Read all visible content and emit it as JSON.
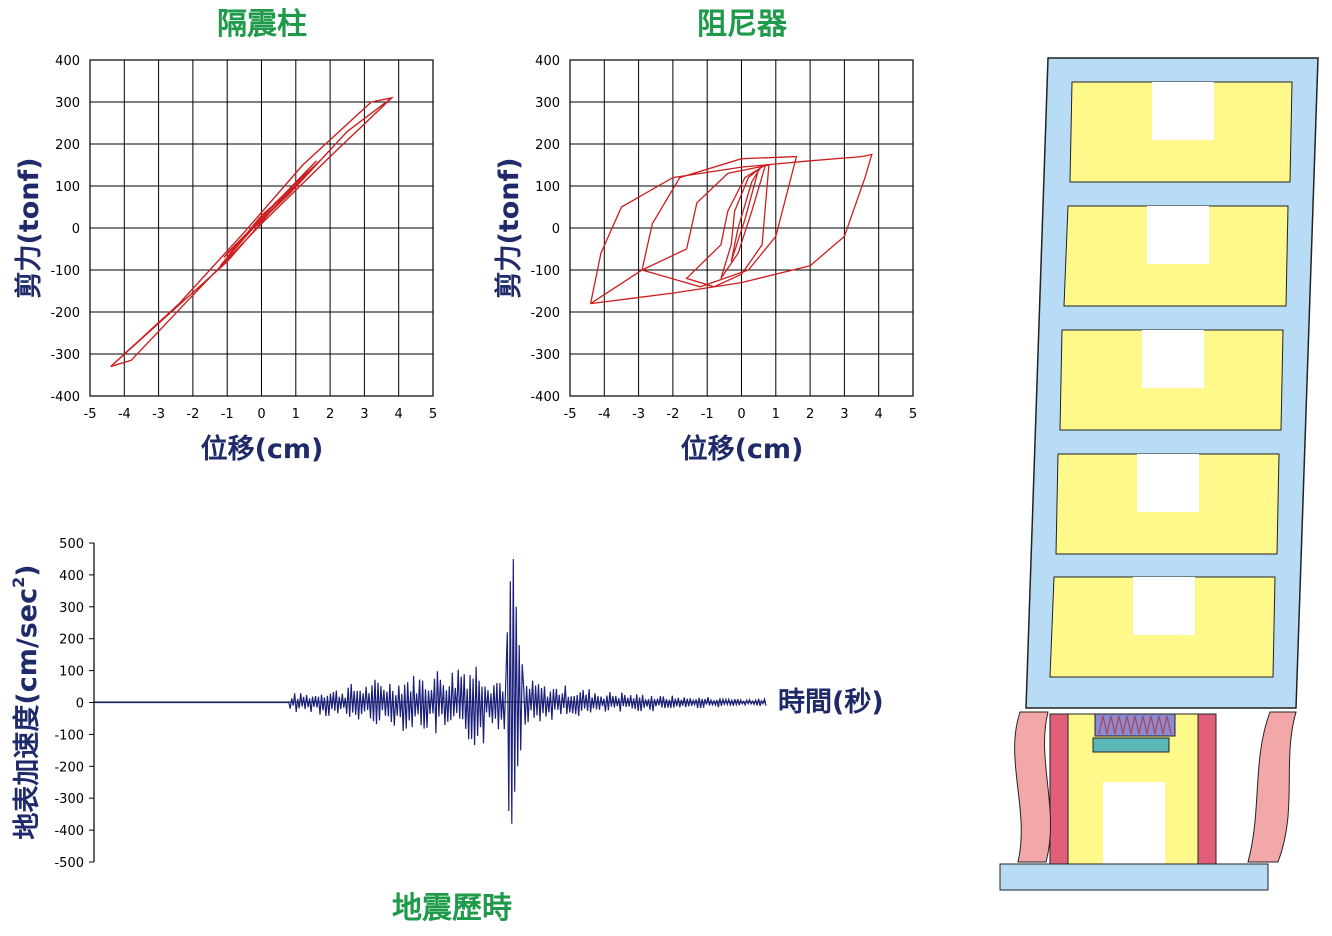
{
  "chart_data": [
    {
      "type": "line",
      "title": "隔震柱",
      "xlabel": "位移(cm)",
      "ylabel": "剪力(tonf)",
      "xlim": [
        -5,
        5
      ],
      "ylim": [
        -400,
        400
      ],
      "xticks": [
        "-5",
        "-4",
        "-3",
        "-2",
        "-1",
        "0",
        "1",
        "2",
        "3",
        "4",
        "5"
      ],
      "yticks": [
        "400",
        "300",
        "200",
        "100",
        "0",
        "-100",
        "-200",
        "-300",
        "-400"
      ],
      "grid": true,
      "series_color": "#cc1f1f",
      "x": [
        -4.4,
        -3.8,
        -2.0,
        0.0,
        2.0,
        3.8,
        3.2,
        1.2,
        -0.5,
        -2.4,
        -4.4,
        -1.0,
        0.6,
        1.7,
        0.4,
        -1.2,
        0.0,
        1.0,
        -0.6,
        -1.1,
        0.3,
        1.6,
        0.2,
        -1.0,
        0.8,
        2.5,
        3.8
      ],
      "y": [
        -330,
        -315,
        -160,
        10,
        170,
        310,
        300,
        150,
        -10,
        -180,
        -330,
        -80,
        70,
        160,
        60,
        -90,
        30,
        100,
        -30,
        -70,
        50,
        160,
        40,
        -60,
        80,
        230,
        310
      ]
    },
    {
      "type": "line",
      "title": "阻尼器",
      "xlabel": "位移(cm)",
      "ylabel": "剪力(tonf)",
      "xlim": [
        -5,
        5
      ],
      "ylim": [
        -400,
        400
      ],
      "xticks": [
        "-5",
        "-4",
        "-3",
        "-2",
        "-1",
        "0",
        "1",
        "2",
        "3",
        "4",
        "5"
      ],
      "yticks": [
        "400",
        "300",
        "200",
        "100",
        "0",
        "-100",
        "-200",
        "-300",
        "-400"
      ],
      "grid": true,
      "series_color": "#cc1f1f",
      "x": [
        -4.4,
        -4.1,
        -3.5,
        -2.0,
        0.0,
        2.0,
        3.5,
        3.8,
        3.6,
        3.0,
        2.0,
        0.0,
        -2.0,
        -4.4,
        -2.9,
        -2.6,
        -1.8,
        0.0,
        1.6,
        1.0,
        0.2,
        -1.2,
        -2.9,
        -1.6,
        -1.3,
        -0.4,
        0.8,
        0.6,
        0.0,
        -0.8,
        -1.6,
        -0.6,
        -0.4,
        0.1,
        0.7,
        0.3,
        -0.1,
        -0.6,
        -0.3,
        -0.2,
        0.2,
        0.5,
        0.1,
        -0.3,
        -0.1,
        0.3,
        0.6
      ],
      "y": [
        -180,
        -60,
        50,
        120,
        145,
        160,
        170,
        175,
        120,
        -20,
        -90,
        -130,
        -155,
        -180,
        -100,
        10,
        120,
        165,
        170,
        -20,
        -100,
        -140,
        -100,
        -50,
        60,
        130,
        150,
        -40,
        -110,
        -140,
        -120,
        -40,
        40,
        120,
        150,
        40,
        -60,
        -120,
        -40,
        40,
        120,
        140,
        20,
        -80,
        0,
        110,
        150
      ]
    },
    {
      "type": "line",
      "title": "地震歷時",
      "xlabel": "時間(秒)",
      "ylabel": "地表加速度(cm/sec",
      "ylabel_superscript": "2",
      "ylabel_suffix": ")",
      "ylim": [
        -500,
        500
      ],
      "yticks": [
        "500",
        "400",
        "300",
        "200",
        "100",
        "0",
        "-100",
        "-200",
        "-300",
        "-400",
        "-500"
      ],
      "grid": false,
      "series_color": "#1a1f7a",
      "duration_points": 340,
      "peak_index": 170,
      "peak_values": [
        220,
        -340,
        380,
        -380,
        450,
        -280,
        300,
        -200,
        180,
        -150,
        120
      ],
      "amplitude_envelope": [
        0,
        30,
        45,
        60,
        75,
        90,
        110,
        140,
        90,
        70,
        55,
        45,
        35,
        28,
        22,
        18,
        15,
        12,
        10
      ]
    }
  ],
  "building": {
    "frame_color": "#b8dcf5",
    "room_color": "#fff88a",
    "column_color": "#f2a8a8",
    "isolator_color": "#e0607a",
    "damper_color": "#5cb8b8",
    "damper_top_color": "#8a8ad8"
  }
}
